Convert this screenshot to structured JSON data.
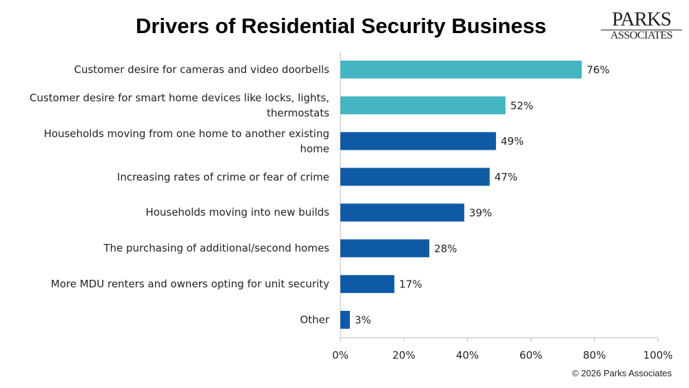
{
  "chart_data": {
    "type": "bar",
    "orientation": "horizontal",
    "title": "Drivers of Residential Security Business",
    "logo": [
      "PARKS",
      "ASSOCIATES"
    ],
    "source": "© 2026 Parks Associates",
    "categories": [
      "Customer desire for cameras and video doorbells",
      "Customer desire for smart home devices like locks, lights, thermostats",
      "Households moving from one home to another existing home",
      "Increasing rates of crime or fear of crime",
      "Households moving into new builds",
      "The purchasing of additional/second homes",
      "More MDU renters and owners opting for unit security",
      "Other"
    ],
    "values": [
      76,
      52,
      49,
      47,
      39,
      28,
      17,
      3
    ],
    "value_labels": [
      "76%",
      "52%",
      "49%",
      "47%",
      "39%",
      "28%",
      "17%",
      "3%"
    ],
    "colors": [
      "#45b5c1",
      "#45b5c1",
      "#0f5aa5",
      "#0f5aa5",
      "#0f5aa5",
      "#0f5aa5",
      "#0f5aa5",
      "#0f5aa5"
    ],
    "xlim": [
      0,
      100
    ],
    "xticks": [
      {
        "value": 0,
        "label": "0%"
      },
      {
        "value": 20,
        "label": "20%"
      },
      {
        "value": 40,
        "label": "40%"
      },
      {
        "value": 60,
        "label": "60%"
      },
      {
        "value": 80,
        "label": "80%"
      },
      {
        "value": 100,
        "label": "100%"
      }
    ],
    "grid": false
  }
}
